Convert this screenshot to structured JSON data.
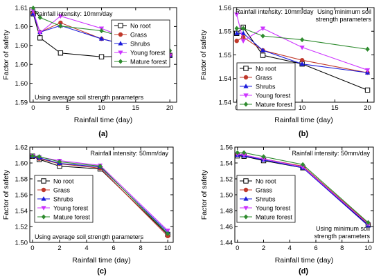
{
  "series_styles": [
    {
      "color": "#000000",
      "marker": "square-open"
    },
    {
      "color": "#c0392b",
      "marker": "circle"
    },
    {
      "color": "#1a1adb",
      "marker": "triangle"
    },
    {
      "color": "#cc33ff",
      "marker": "triangle-down"
    },
    {
      "color": "#2e8b2e",
      "marker": "diamond"
    }
  ],
  "chart_data": [
    {
      "type": "line",
      "panel_label": "(a)",
      "xlabel": "Rainfall time (day)",
      "ylabel": "Factor of safety",
      "annotations": [
        "Rainfall intensity: 10mm/day",
        "Using average soil strength parameters"
      ],
      "legend_position": "top-right",
      "xlim": [
        -0.5,
        21
      ],
      "ylim": [
        1.59,
        1.61
      ],
      "xticks": [
        0,
        5,
        10,
        15,
        20
      ],
      "ytick_labels": [
        "1.59",
        "1.60",
        "1.60",
        "1.60",
        "1.60",
        "1.61"
      ],
      "x": [
        0,
        1,
        4,
        10,
        20
      ],
      "series": [
        {
          "name": "No root",
          "values": [
            1.6087,
            1.6036,
            1.6004,
            1.5996,
            1.5999
          ]
        },
        {
          "name": "Grass",
          "values": [
            1.6087,
            1.6048,
            1.6068,
            1.6034,
            1.5999
          ]
        },
        {
          "name": "Shrubs",
          "values": [
            1.6087,
            1.6048,
            1.6062,
            1.6034,
            1.5999
          ]
        },
        {
          "name": "Young forest",
          "values": [
            1.6093,
            1.6047,
            1.6082,
            1.6056,
            1.5999
          ]
        },
        {
          "name": "Mature forest",
          "values": [
            1.6099,
            1.6079,
            1.6061,
            1.6051,
            1.6009
          ]
        }
      ]
    },
    {
      "type": "line",
      "panel_label": "(b)",
      "xlabel": "Rainfall time (day)",
      "ylabel": "Factor of safety",
      "annotations": [
        "Rainfall intensity: 10mm/day",
        "Using minimum soil",
        "strength parameters"
      ],
      "legend_position": "bottom-left",
      "xlim": [
        -0.5,
        21
      ],
      "ylim": [
        1.535,
        1.56
      ],
      "xticks": [
        0,
        5,
        10,
        15,
        20
      ],
      "ytick_labels": [
        "1.54",
        "1.54",
        "1.55",
        "1.55",
        "1.56"
      ],
      "x": [
        0,
        1,
        4,
        10,
        20
      ],
      "series": [
        {
          "name": "No root",
          "values": [
            1.5532,
            1.5548,
            1.5474,
            1.5451,
            1.5382
          ]
        },
        {
          "name": "Grass",
          "values": [
            1.5512,
            1.5522,
            1.5487,
            1.5461,
            1.5428
          ]
        },
        {
          "name": "Shrubs",
          "values": [
            1.5532,
            1.5532,
            1.5487,
            1.5451,
            1.5428
          ]
        },
        {
          "name": "Young forest",
          "values": [
            1.5582,
            1.5512,
            1.5545,
            1.5495,
            1.5435
          ]
        },
        {
          "name": "Mature forest",
          "values": [
            1.5545,
            1.5545,
            1.5525,
            1.5515,
            1.549
          ]
        }
      ]
    },
    {
      "type": "line",
      "panel_label": "(c)",
      "xlabel": "Rainfall time (day)",
      "ylabel": "Factor of safety",
      "annotations": [
        "Rainfall intensity: 50mm/day",
        "Using average soil strength parameters"
      ],
      "legend_position": "center-left",
      "xlim": [
        -0.2,
        10.4
      ],
      "ylim": [
        1.5,
        1.62
      ],
      "xticks": [
        0,
        2,
        4,
        6,
        8,
        10
      ],
      "ytick_labels": [
        "1.50",
        "1.52",
        "1.54",
        "1.56",
        "1.58",
        "1.60",
        "1.62"
      ],
      "x": [
        0,
        0.5,
        2,
        5,
        10
      ],
      "series": [
        {
          "name": "No root",
          "values": [
            1.6085,
            1.6045,
            1.596,
            1.5925,
            1.51
          ]
        },
        {
          "name": "Grass",
          "values": [
            1.6085,
            1.6055,
            1.599,
            1.5935,
            1.508
          ]
        },
        {
          "name": "Shrubs",
          "values": [
            1.6085,
            1.6065,
            1.5995,
            1.595,
            1.513
          ]
        },
        {
          "name": "Young forest",
          "values": [
            1.609,
            1.6075,
            1.603,
            1.597,
            1.515
          ]
        },
        {
          "name": "Mature forest",
          "values": [
            1.609,
            1.608,
            1.6015,
            1.596,
            1.511
          ]
        }
      ]
    },
    {
      "type": "line",
      "panel_label": "(d)",
      "xlabel": "Rainfall time (day)",
      "ylabel": "Factor of safety",
      "annotations": [
        "Rainfall intensity: 50mm/day",
        "Using minimum soil",
        "strength parameters"
      ],
      "legend_position": "center-left",
      "xlim": [
        -0.2,
        10.4
      ],
      "ylim": [
        1.44,
        1.56
      ],
      "xticks": [
        0,
        2,
        4,
        6,
        8,
        10
      ],
      "ytick_labels": [
        "1.44",
        "1.46",
        "1.48",
        "1.50",
        "1.52",
        "1.54",
        "1.56"
      ],
      "x": [
        0,
        0.5,
        2,
        5,
        10
      ],
      "series": [
        {
          "name": "No root",
          "values": [
            1.549,
            1.5485,
            1.543,
            1.534,
            1.462
          ]
        },
        {
          "name": "Grass",
          "values": [
            1.551,
            1.55,
            1.545,
            1.536,
            1.464
          ]
        },
        {
          "name": "Shrubs",
          "values": [
            1.55,
            1.549,
            1.544,
            1.534,
            1.461
          ]
        },
        {
          "name": "Young forest",
          "values": [
            1.551,
            1.55,
            1.545,
            1.535,
            1.463
          ]
        },
        {
          "name": "Mature forest",
          "values": [
            1.553,
            1.553,
            1.548,
            1.538,
            1.465
          ]
        }
      ]
    }
  ]
}
